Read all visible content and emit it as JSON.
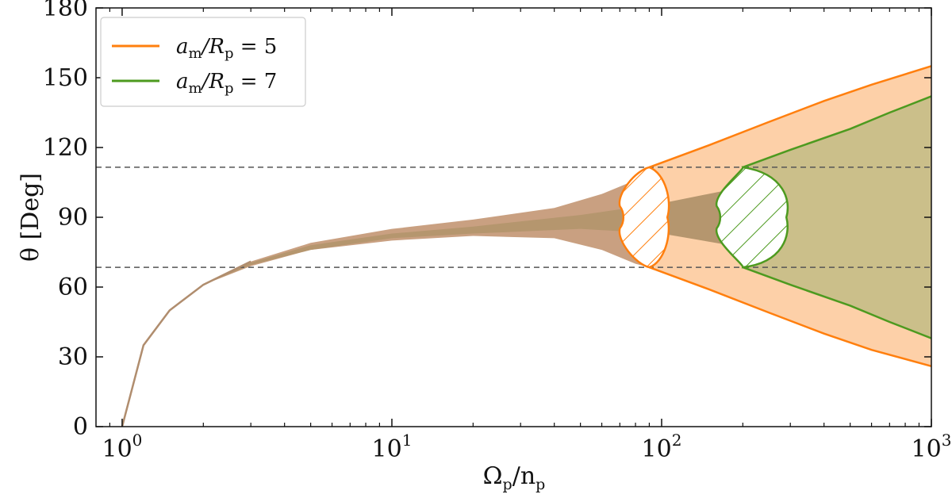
{
  "chart_data": {
    "type": "area",
    "xlabel": "Ω_p/n_p",
    "ylabel": "θ [Deg]",
    "xscale": "log",
    "xlim": [
      0.8,
      1000
    ],
    "ylim": [
      0,
      180
    ],
    "yticks": [
      0,
      30,
      60,
      90,
      120,
      150,
      180
    ],
    "xticks": [
      {
        "value": 1,
        "base": "10",
        "exp": "0"
      },
      {
        "value": 10,
        "base": "10",
        "exp": "1"
      },
      {
        "value": 100,
        "base": "10",
        "exp": "2"
      },
      {
        "value": 1000,
        "base": "10",
        "exp": "3"
      }
    ],
    "grid": false,
    "legend_position": "top-left",
    "reference_lines": [
      68.5,
      111.5
    ],
    "colors": {
      "orange": "#ff7f0e",
      "green": "#4d9a1f",
      "orange_fill": "#fdd0a8",
      "brown_fill": "#c9a081",
      "olive_fill": "#cbbf8a",
      "dark_fill": "#b5966e",
      "dash": "#555555"
    },
    "series": [
      {
        "name": "a_m/R_p = 5",
        "legend": {
          "base": "a",
          "base_sub": "m",
          "mid": "/R",
          "mid_sub": "p",
          "tail": " = 5"
        },
        "color": "#ff7f0e",
        "upper": {
          "x": [
            90,
            150,
            250,
            400,
            600,
            1000
          ],
          "y": [
            111.5,
            121,
            131,
            140,
            147,
            155
          ]
        },
        "lower": {
          "x": [
            90,
            150,
            250,
            400,
            600,
            1000
          ],
          "y": [
            68.5,
            59,
            49,
            40,
            33,
            26
          ]
        },
        "hatch_region": {
          "x_range": [
            70,
            105
          ],
          "y_range": [
            68.5,
            111.5
          ]
        }
      },
      {
        "name": "a_m/R_p = 7",
        "legend": {
          "base": "a",
          "base_sub": "m",
          "mid": "/R",
          "mid_sub": "p",
          "tail": " = 7"
        },
        "color": "#4d9a1f",
        "upper": {
          "x": [
            200,
            300,
            500,
            700,
            1000
          ],
          "y": [
            111.5,
            119,
            128,
            135,
            142
          ]
        },
        "lower": {
          "x": [
            200,
            300,
            500,
            700,
            1000
          ],
          "y": [
            68.5,
            61,
            52,
            45,
            38
          ]
        },
        "hatch_region": {
          "x_range": [
            160,
            290
          ],
          "y_range": [
            68.5,
            111.5
          ]
        }
      }
    ],
    "band_outer": {
      "x": [
        1,
        1.2,
        1.5,
        2,
        3,
        5,
        10,
        20,
        40,
        60,
        80,
        90
      ],
      "upper": [
        0,
        35,
        50,
        61,
        71,
        79,
        85,
        89,
        94,
        100,
        106,
        111.5
      ],
      "lower": [
        0,
        35,
        50,
        61,
        69,
        76,
        80,
        82,
        81,
        76,
        70,
        68.5
      ]
    },
    "band_inner": {
      "x": [
        1,
        1.5,
        2,
        3,
        5,
        10,
        20,
        50,
        100,
        200
      ],
      "upper": [
        0,
        50,
        61,
        70.5,
        78,
        83,
        86,
        91,
        96,
        103
      ],
      "lower": [
        0,
        50,
        61,
        69.5,
        76,
        81,
        83,
        85,
        83,
        77
      ]
    }
  }
}
